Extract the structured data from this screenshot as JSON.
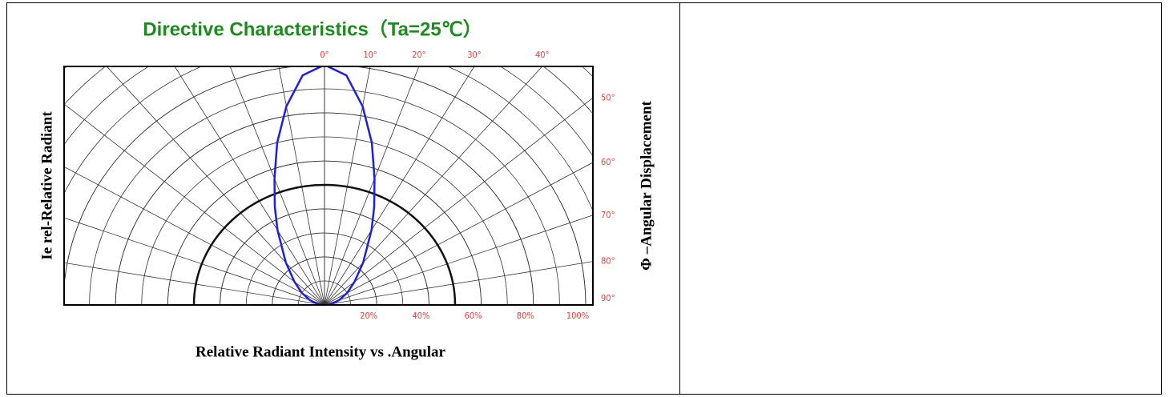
{
  "chart_data": {
    "type": "polar",
    "title": "Directive Characteristics（Ta=25℃）",
    "y_label": "Ie rel-Relative Radiant",
    "y2_label": "Φ –Angular Displacement",
    "x_label": "Relative Radiant Intensity vs .Angular",
    "angle_ticks": [
      {
        "value": 0,
        "label": "0°"
      },
      {
        "value": 10,
        "label": "10°"
      },
      {
        "value": 20,
        "label": "20°"
      },
      {
        "value": 30,
        "label": "30°"
      },
      {
        "value": 40,
        "label": "40°"
      },
      {
        "value": 50,
        "label": "50°"
      },
      {
        "value": 60,
        "label": "60°"
      },
      {
        "value": 70,
        "label": "70°"
      },
      {
        "value": 80,
        "label": "80°"
      },
      {
        "value": 90,
        "label": "90°"
      }
    ],
    "radius_ticks": [
      {
        "value": 20,
        "label": "20%"
      },
      {
        "value": 40,
        "label": "40%"
      },
      {
        "value": 60,
        "label": "60%"
      },
      {
        "value": 80,
        "label": "80%"
      },
      {
        "value": 100,
        "label": "100%"
      }
    ],
    "rlim": [
      0,
      100
    ],
    "reference_circle": 50,
    "series": [
      {
        "color": "#1f1fe0",
        "angles": [
          0,
          5,
          10,
          15,
          20,
          25,
          30,
          40,
          50,
          60,
          70,
          80,
          90
        ],
        "values": [
          100,
          96,
          84,
          70,
          56,
          45,
          36,
          23,
          15,
          10,
          6,
          3,
          0
        ]
      }
    ]
  }
}
